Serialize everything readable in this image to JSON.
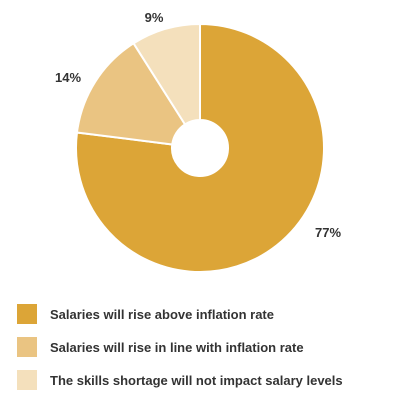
{
  "chart_data": {
    "type": "pie",
    "variant": "donut",
    "labels": [
      "Salaries will rise above inflation rate",
      "Salaries will rise in line with inflation rate",
      "The skills shortage will not impact salary levels"
    ],
    "values": [
      77,
      14,
      9
    ],
    "value_labels": [
      "77%",
      "14%",
      "9%"
    ],
    "colors": [
      "#DCA537",
      "#EAC482",
      "#F4E0BC"
    ],
    "legend_position": "bottom-left",
    "start": "12 o'clock, clockwise"
  }
}
